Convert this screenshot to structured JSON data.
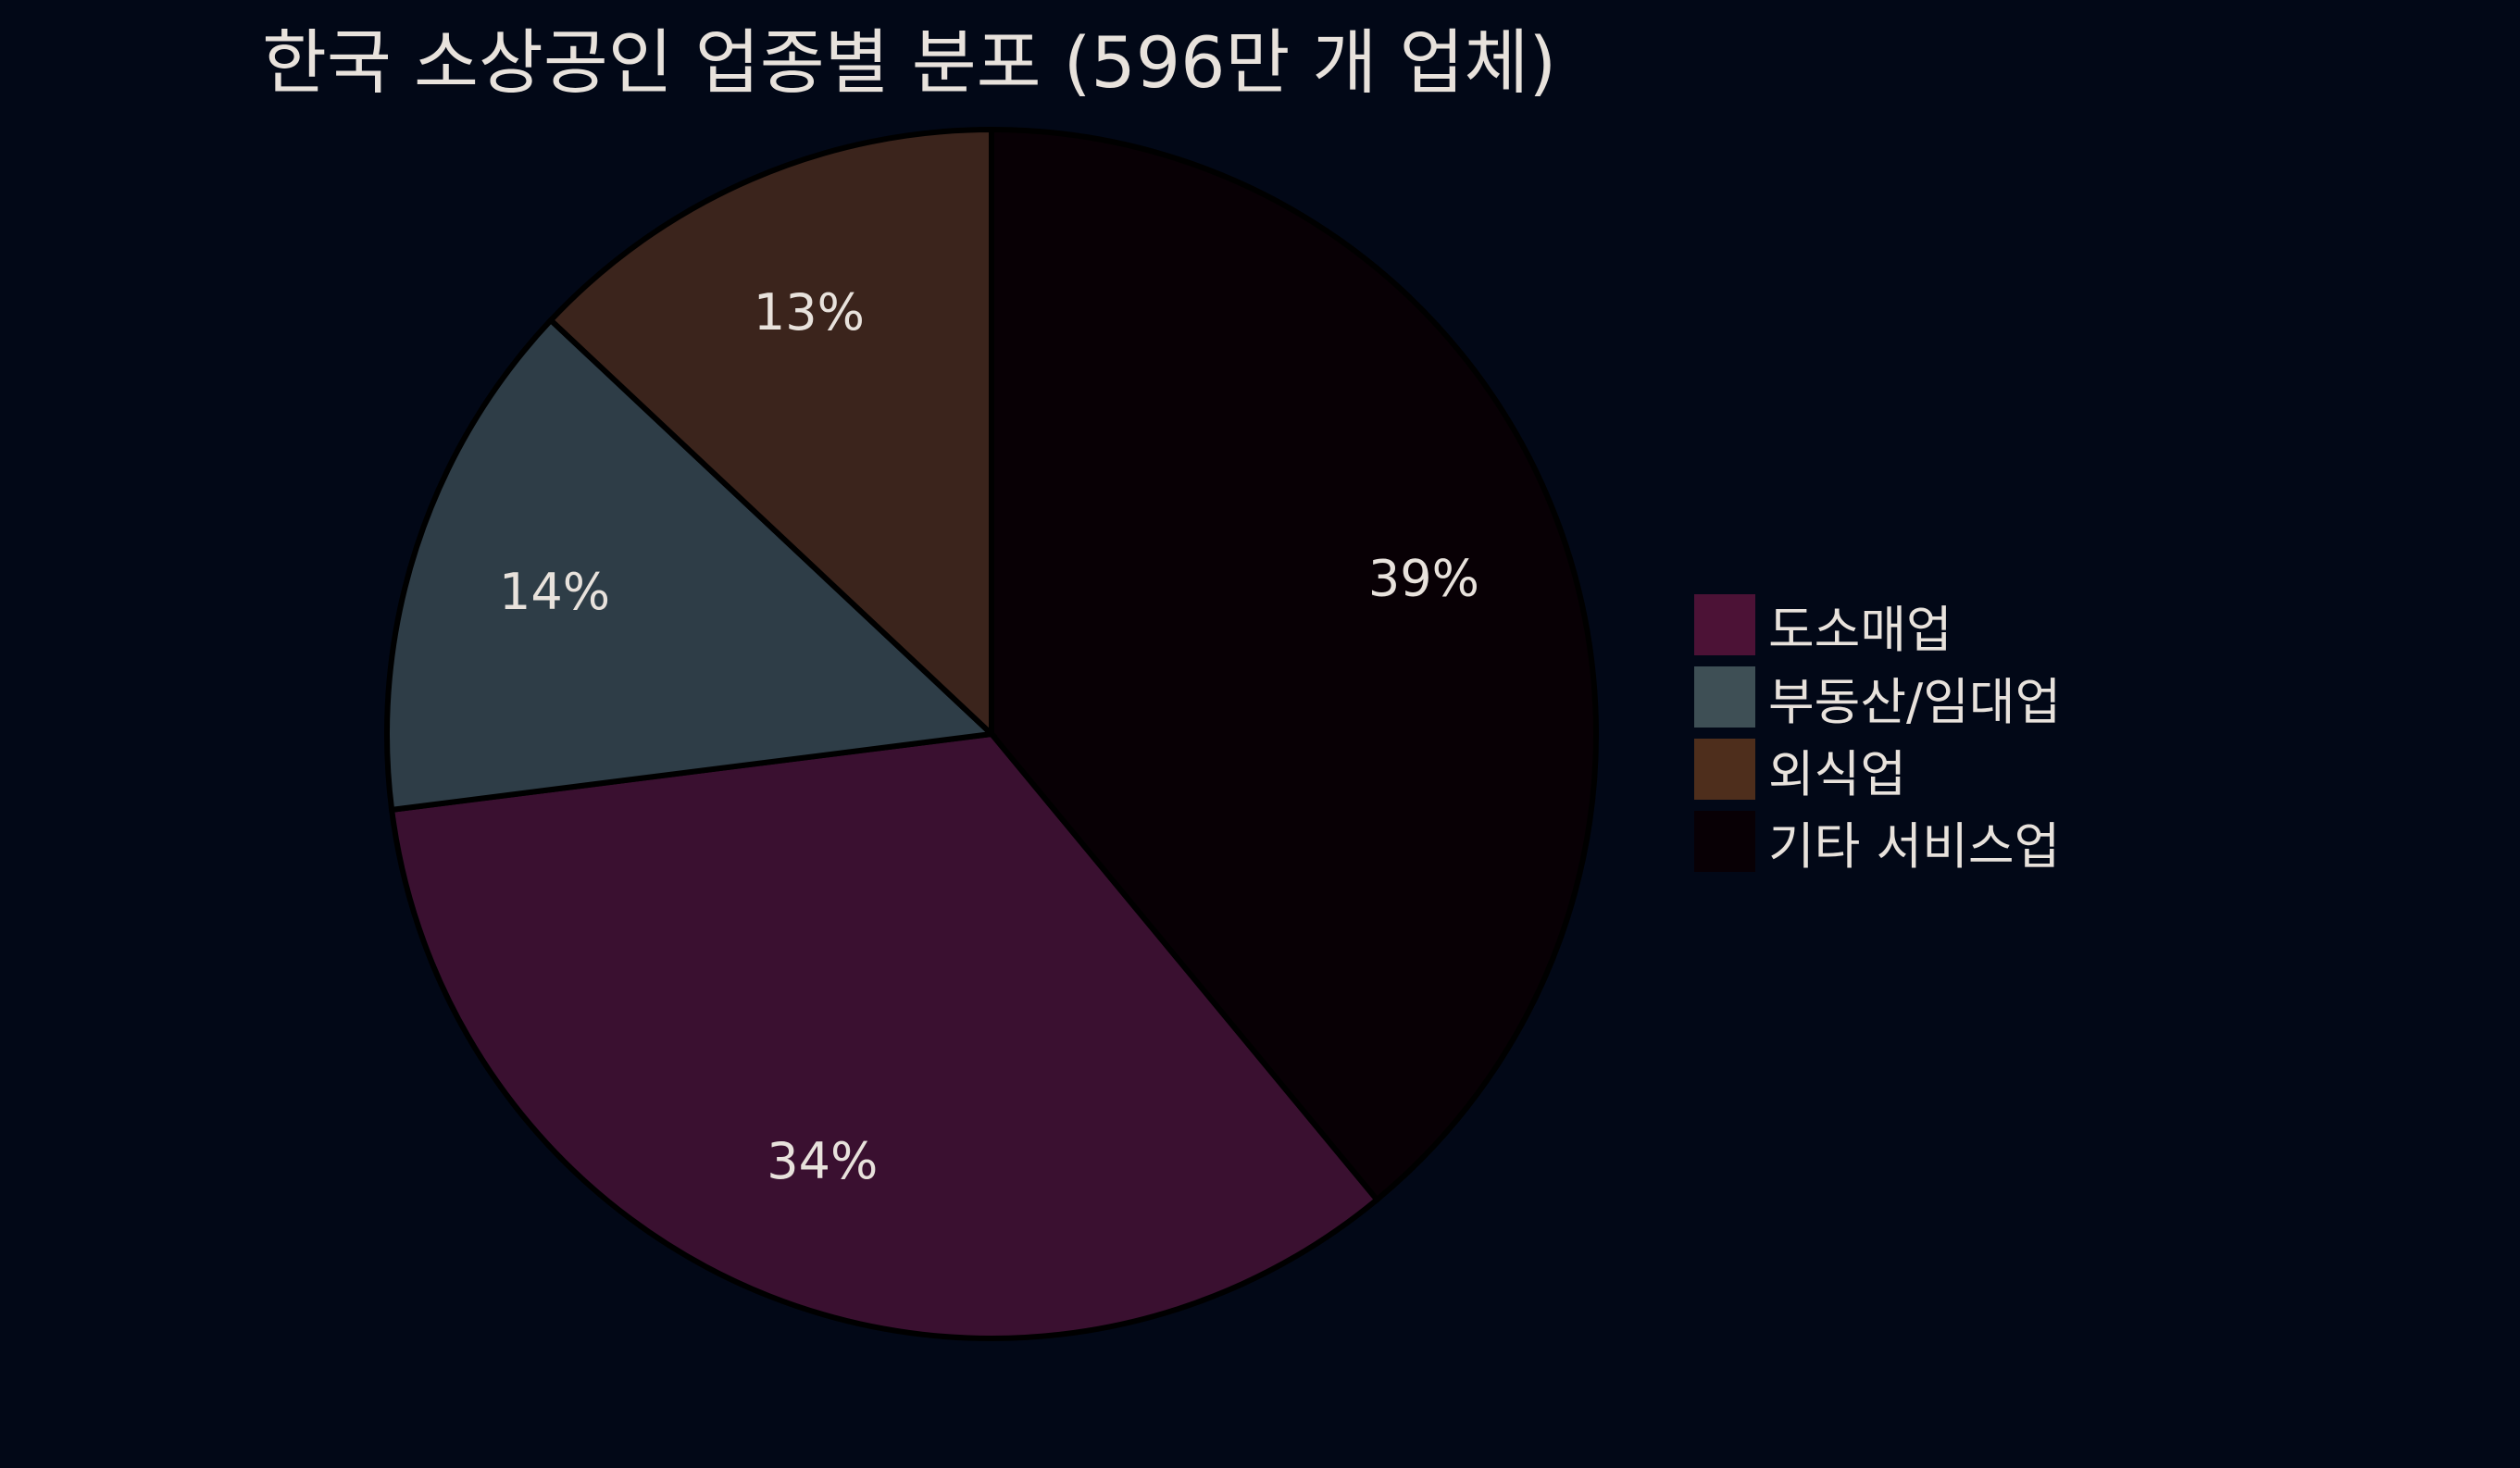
{
  "chart_data": {
    "type": "pie",
    "title": "한국 소상공인 업종별 분포 (596만 개 업체)",
    "direction": "clockwise",
    "start": "top",
    "legend_position": "right",
    "slices": [
      {
        "label": "기타 서비스업",
        "value": 39,
        "text": "39%",
        "color": "#080005",
        "legend_color": "#080005"
      },
      {
        "label": "도소매업",
        "value": 34,
        "text": "34%",
        "color": "#3a1030",
        "legend_color": "#4c1236"
      },
      {
        "label": "부동산/임대업",
        "value": 14,
        "text": "14%",
        "color": "#2e3d47",
        "legend_color": "#3e4f55"
      },
      {
        "label": "외식업",
        "value": 13,
        "text": "13%",
        "color": "#3b241c",
        "legend_color": "#4e2e1c"
      }
    ],
    "legend_order": [
      "도소매업",
      "부동산/임대업",
      "외식업",
      "기타 서비스업"
    ]
  },
  "colors": {
    "background": "#020817",
    "text": "#e8e2dc",
    "outline": "#000000"
  }
}
